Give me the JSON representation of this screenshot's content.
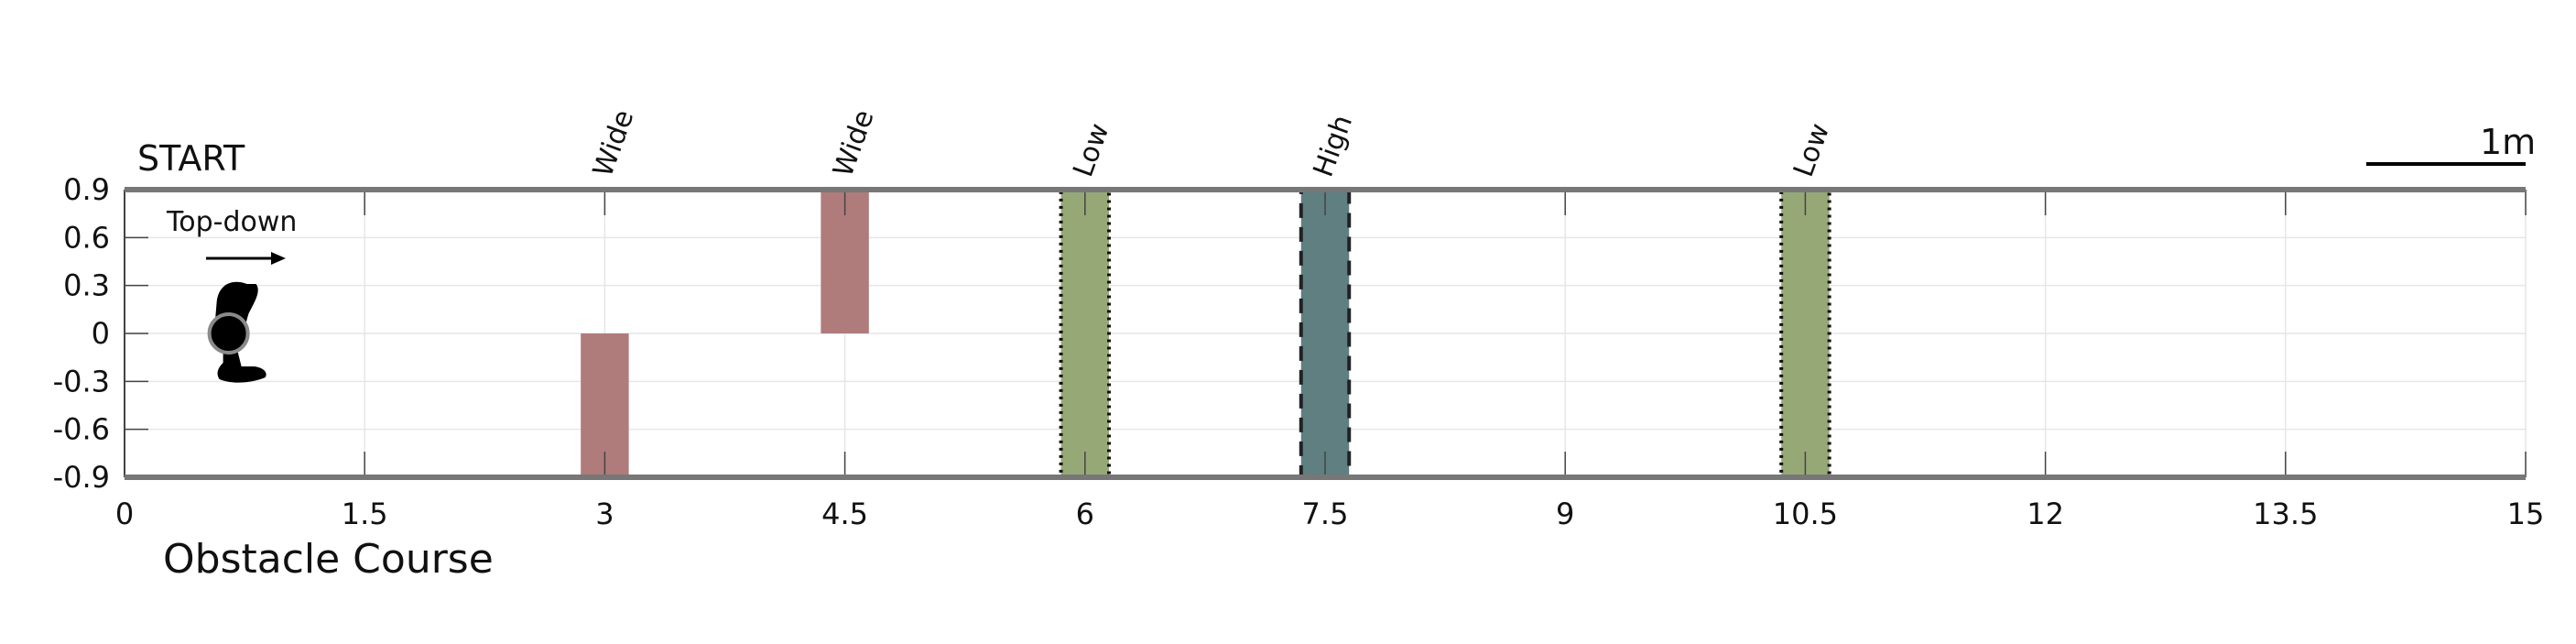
{
  "chart_data": {
    "type": "bar",
    "title": "Obstacle Course",
    "start_label": "START",
    "view_label": "Top-down",
    "scale_label": "1m",
    "xlim": [
      0,
      15
    ],
    "ylim": [
      -0.9,
      0.9
    ],
    "xticks": [
      "0",
      "1.5",
      "3",
      "4.5",
      "6",
      "7.5",
      "9",
      "10.5",
      "12",
      "13.5",
      "15"
    ],
    "yticks": [
      "0.9",
      "0.6",
      "0.3",
      "0",
      "-0.3",
      "-0.6",
      "-0.9"
    ],
    "grid": true,
    "robot_position": {
      "x": 0.65,
      "y": 0
    },
    "obstacles": [
      {
        "label": "Wide",
        "x_start": 2.85,
        "x_end": 3.15,
        "y_start": -0.9,
        "y_end": 0,
        "color": "#b07b7b",
        "border": "none"
      },
      {
        "label": "Wide",
        "x_start": 4.35,
        "x_end": 4.65,
        "y_start": 0,
        "y_end": 0.9,
        "color": "#b07b7b",
        "border": "none"
      },
      {
        "label": "Low",
        "x_start": 5.85,
        "x_end": 6.15,
        "y_start": -0.9,
        "y_end": 0.9,
        "color": "#97a877",
        "border": "dotted"
      },
      {
        "label": "High",
        "x_start": 7.35,
        "x_end": 7.65,
        "y_start": -0.9,
        "y_end": 0.9,
        "color": "#5f7f80",
        "border": "dashed"
      },
      {
        "label": "Low",
        "x_start": 10.35,
        "x_end": 10.65,
        "y_start": -0.9,
        "y_end": 0.9,
        "color": "#97a877",
        "border": "dotted"
      }
    ]
  }
}
